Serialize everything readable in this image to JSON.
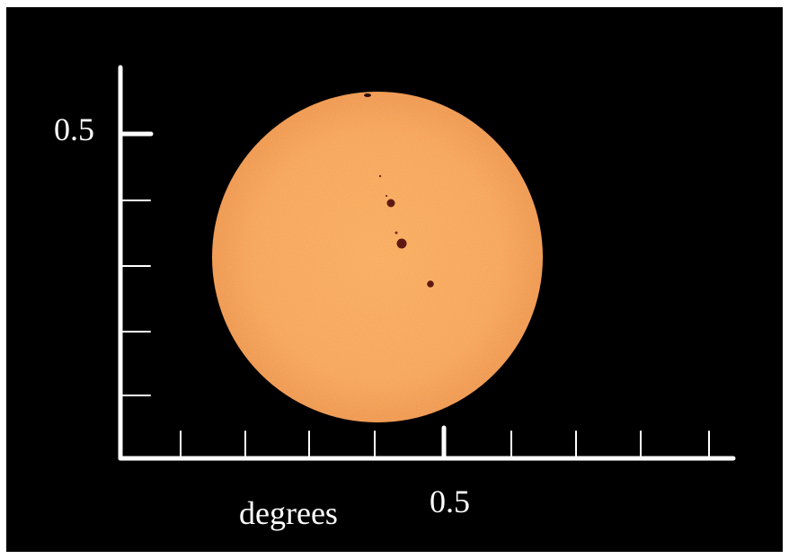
{
  "image": {
    "background_color": "#000000",
    "sun_color": "#f7a24a",
    "axis_color": "#ffffff",
    "spot_color": "#6a1e16"
  },
  "axes": {
    "y_tick_label": "0.5",
    "x_tick_label": "0.5",
    "x_axis_label": "degrees"
  }
}
